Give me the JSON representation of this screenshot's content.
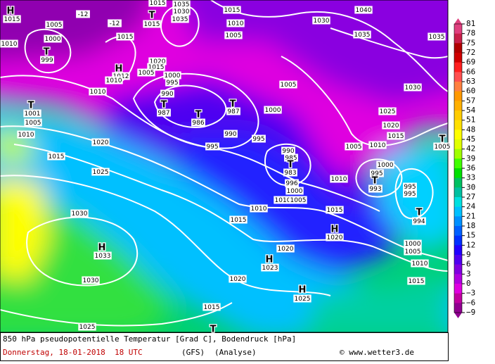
{
  "map": {
    "labels": [
      "H",
      "1015",
      "1005",
      "1000",
      "T",
      "999",
      "1010",
      "-12",
      "-12",
      "1015",
      "T",
      "1015",
      "1015",
      "1035",
      "1030",
      "1035",
      "1015",
      "1010",
      "1005",
      "1040",
      "1030",
      "1035",
      "1035",
      "1020",
      "1015",
      "H",
      "1012",
      "1010",
      "1005",
      "1000",
      "995",
      "990",
      "1010",
      "T",
      "1001",
      "1005",
      "1010",
      "T",
      "987",
      "T",
      "986",
      "T",
      "987",
      "1000",
      "1005",
      "1030",
      "1025",
      "1020",
      "1015",
      "1020",
      "990",
      "995",
      "995",
      "1015",
      "990",
      "985",
      "T",
      "983",
      "996",
      "1000",
      "1005",
      "1010",
      "1000",
      "995",
      "T",
      "993",
      "995",
      "995",
      "1010",
      "1025",
      "1010",
      "1010",
      "1005",
      "1015",
      "H",
      "1020",
      "T",
      "994",
      "1030",
      "1015",
      "H",
      "1033",
      "1000",
      "1005",
      "1010",
      "1020",
      "H",
      "1023",
      "1030",
      "1020",
      "1015",
      "H",
      "1025",
      "1015",
      "1025",
      "T",
      "T",
      "1005"
    ],
    "legend": {
      "labels": [
        "81",
        "78",
        "75",
        "72",
        "69",
        "66",
        "63",
        "60",
        "57",
        "54",
        "51",
        "48",
        "45",
        "42",
        "39",
        "36",
        "33",
        "30",
        "27",
        "24",
        "21",
        "18",
        "15",
        "12",
        "9",
        "6",
        "3",
        "0",
        "−3",
        "−6",
        "−9"
      ],
      "colors": [
        "#e0407f",
        "#c8204a",
        "#b00000",
        "#d00000",
        "#ff2020",
        "#ff5050",
        "#ff8040",
        "#ff9900",
        "#ffb000",
        "#ffcc00",
        "#ffe000",
        "#ffff00",
        "#e0ff00",
        "#a0ff00",
        "#40ff00",
        "#00e000",
        "#00c060",
        "#00c0a0",
        "#00e0e0",
        "#00c0ff",
        "#0090ff",
        "#0060ff",
        "#0030ff",
        "#2000ff",
        "#5000f0",
        "#8000e0",
        "#b000e0",
        "#e000e0",
        "#c000a0",
        "#900090"
      ]
    },
    "footer": {
      "description": "850 hPa pseudopotentielle Temperatur [Grad C], Bodendruck [hPa]",
      "date": "Donnerstag, 18-01-2018  18 UTC",
      "model": "(GFS)",
      "run": "(Analyse)",
      "source": "© www.wetter3.de"
    }
  }
}
